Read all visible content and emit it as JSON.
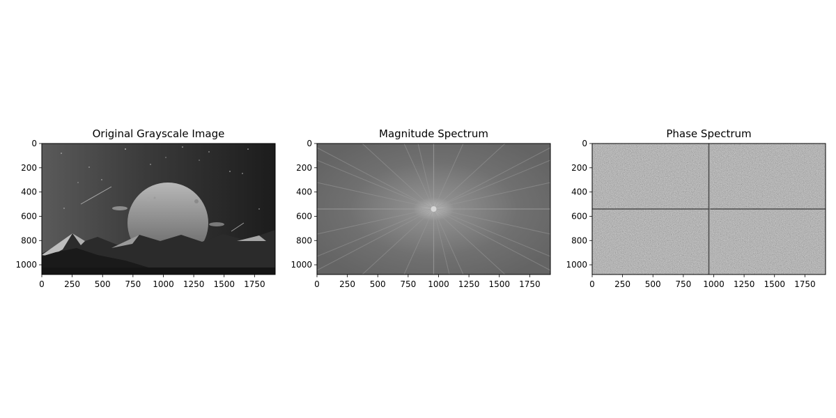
{
  "chart_data": [
    {
      "type": "heatmap",
      "title": "Original Grayscale Image",
      "content": "grayscale landscape: moon, mountains, stars",
      "colormap": "gray",
      "xlim": [
        0,
        1920
      ],
      "ylim": [
        1080,
        0
      ],
      "xticks": [
        0,
        250,
        500,
        750,
        1000,
        1250,
        1500,
        1750
      ],
      "yticks": [
        0,
        200,
        400,
        600,
        800,
        1000
      ]
    },
    {
      "type": "heatmap",
      "title": "Magnitude Spectrum",
      "content": "log magnitude of centered 2D FFT",
      "colormap": "gray",
      "xlim": [
        0,
        1920
      ],
      "ylim": [
        1080,
        0
      ],
      "xticks": [
        0,
        250,
        500,
        750,
        1000,
        1250,
        1500,
        1750
      ],
      "yticks": [
        0,
        200,
        400,
        600,
        800,
        1000
      ]
    },
    {
      "type": "heatmap",
      "title": "Phase Spectrum",
      "content": "phase of centered 2D FFT",
      "colormap": "gray",
      "xlim": [
        0,
        1920
      ],
      "ylim": [
        1080,
        0
      ],
      "xticks": [
        0,
        250,
        500,
        750,
        1000,
        1250,
        1500,
        1750
      ],
      "yticks": [
        0,
        200,
        400,
        600,
        800,
        1000
      ]
    }
  ],
  "colors": {
    "frame": "#000000",
    "background": "#ffffff"
  }
}
